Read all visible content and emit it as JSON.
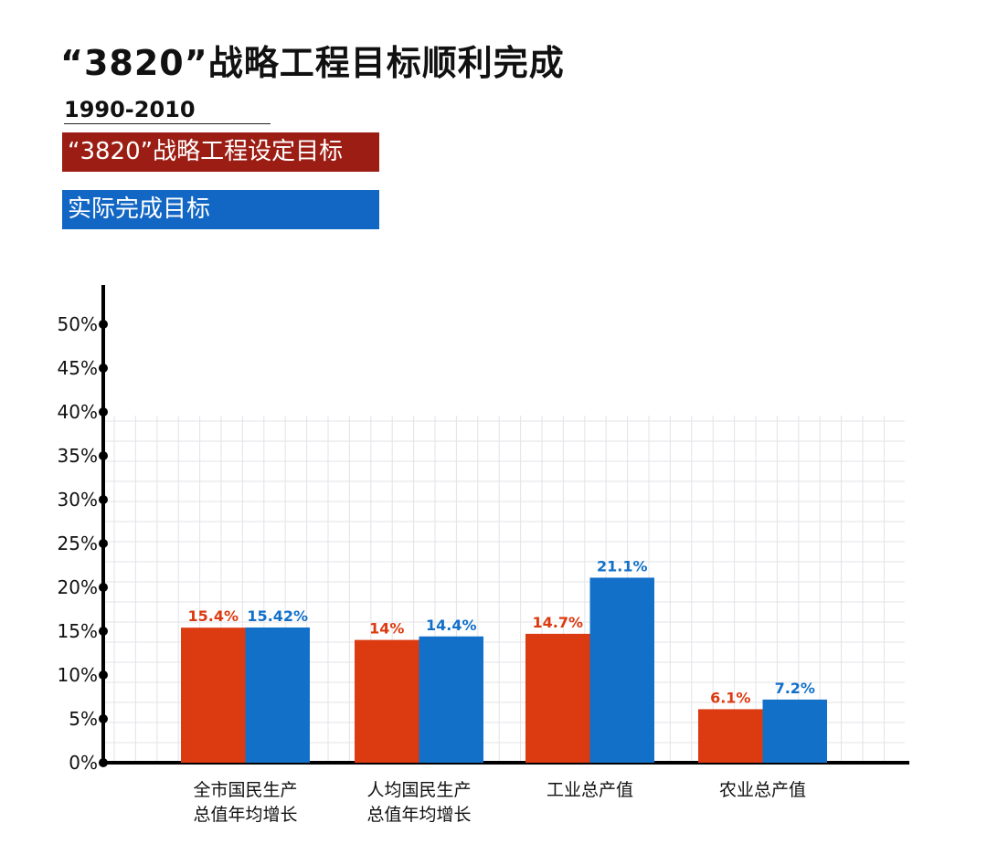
{
  "title": "“3820”战略工程目标顺利完成",
  "period": "1990-2010",
  "colors": {
    "target": "#dc3a10",
    "actual": "#1270c9",
    "legend_target": "#9b1d13",
    "legend_actual": "#1266c4"
  },
  "chart_data": {
    "type": "bar",
    "categories": [
      [
        "全市国民生产",
        "总值年均增长"
      ],
      [
        "人均国民生产",
        "总值年均增长"
      ],
      [
        "工业总产值"
      ],
      [
        "农业总产值"
      ]
    ],
    "series": [
      {
        "name": "“3820”战略工程设定目标",
        "values": [
          15.4,
          14,
          14.7,
          6.1
        ],
        "labels": [
          "15.4%",
          "14%",
          "14.7%",
          "6.1%"
        ]
      },
      {
        "name": "实际完成目标",
        "values": [
          15.42,
          14.4,
          21.1,
          7.2
        ],
        "labels": [
          "15.42%",
          "14.4%",
          "21.1%",
          "7.2%"
        ]
      }
    ],
    "ylim": [
      0,
      50
    ],
    "yticks": [
      "0%",
      "5%",
      "10%",
      "15%",
      "20%",
      "25%",
      "30%",
      "35%",
      "40%",
      "45%",
      "50%"
    ],
    "grid": true,
    "legend_placement": "top-left"
  }
}
